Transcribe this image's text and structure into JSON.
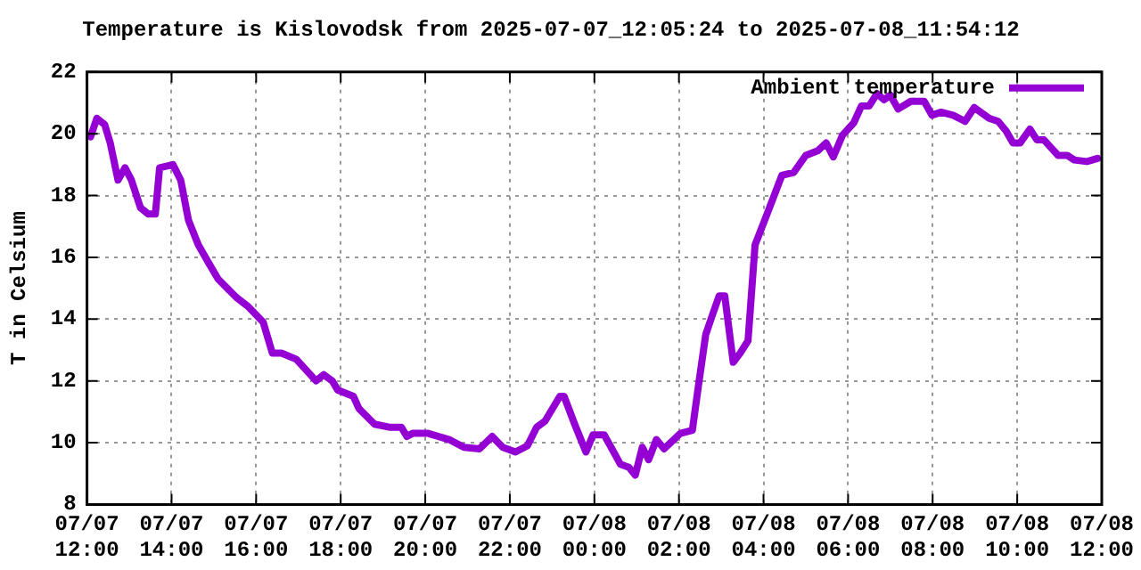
{
  "chart_data": {
    "type": "line",
    "title": "Temperature is Kislovodsk from 2025-07-07_12:05:24 to 2025-07-08_11:54:12",
    "ylabel": "T in Celsium",
    "legend": "top right",
    "grid": true,
    "marker": "none",
    "line_style": "solid",
    "xlim": [
      "2025-07-07T12:00",
      "2025-07-08T12:00"
    ],
    "xticks": [
      {
        "value": "2025-07-07T12:00",
        "label": "07/07 12:00"
      },
      {
        "value": "2025-07-07T14:00",
        "label": "07/07 14:00"
      },
      {
        "value": "2025-07-07T16:00",
        "label": "07/07 16:00"
      },
      {
        "value": "2025-07-07T18:00",
        "label": "07/07 18:00"
      },
      {
        "value": "2025-07-07T20:00",
        "label": "07/07 20:00"
      },
      {
        "value": "2025-07-07T22:00",
        "label": "07/07 22:00"
      },
      {
        "value": "2025-07-08T00:00",
        "label": "07/08 00:00"
      },
      {
        "value": "2025-07-08T02:00",
        "label": "07/08 02:00"
      },
      {
        "value": "2025-07-08T04:00",
        "label": "07/08 04:00"
      },
      {
        "value": "2025-07-08T06:00",
        "label": "07/08 06:00"
      },
      {
        "value": "2025-07-08T08:00",
        "label": "07/08 08:00"
      },
      {
        "value": "2025-07-08T10:00",
        "label": "07/08 10:00"
      },
      {
        "value": "2025-07-08T12:00",
        "label": "07/08 12:00"
      }
    ],
    "ylim": [
      8,
      22
    ],
    "yticks": [
      8,
      10,
      12,
      14,
      16,
      18,
      20,
      22
    ],
    "x": [
      "2025-07-07T12:05",
      "2025-07-07T12:14",
      "2025-07-07T12:25",
      "2025-07-07T12:33",
      "2025-07-07T12:44",
      "2025-07-07T12:54",
      "2025-07-07T13:03",
      "2025-07-07T13:16",
      "2025-07-07T13:27",
      "2025-07-07T13:37",
      "2025-07-07T13:43",
      "2025-07-07T14:02",
      "2025-07-07T14:13",
      "2025-07-07T14:24",
      "2025-07-07T14:38",
      "2025-07-07T14:53",
      "2025-07-07T15:06",
      "2025-07-07T15:32",
      "2025-07-07T15:49",
      "2025-07-07T16:10",
      "2025-07-07T16:23",
      "2025-07-07T16:36",
      "2025-07-07T16:57",
      "2025-07-07T17:25",
      "2025-07-07T17:36",
      "2025-07-07T17:48",
      "2025-07-07T17:56",
      "2025-07-07T18:18",
      "2025-07-07T18:26",
      "2025-07-07T18:48",
      "2025-07-07T19:09",
      "2025-07-07T19:26",
      "2025-07-07T19:34",
      "2025-07-07T19:42",
      "2025-07-07T19:58",
      "2025-07-07T20:04",
      "2025-07-07T20:34",
      "2025-07-07T20:55",
      "2025-07-07T21:17",
      "2025-07-07T21:35",
      "2025-07-07T21:50",
      "2025-07-07T22:08",
      "2025-07-07T22:25",
      "2025-07-07T22:38",
      "2025-07-07T22:50",
      "2025-07-07T23:11",
      "2025-07-07T23:17",
      "2025-07-07T23:32",
      "2025-07-07T23:48",
      "2025-07-07T23:58",
      "2025-07-08T00:14",
      "2025-07-08T00:37",
      "2025-07-08T00:49",
      "2025-07-08T00:58",
      "2025-07-08T01:08",
      "2025-07-08T01:17",
      "2025-07-08T01:28",
      "2025-07-08T01:39",
      "2025-07-08T02:02",
      "2025-07-08T02:19",
      "2025-07-08T02:28",
      "2025-07-08T02:38",
      "2025-07-08T02:47",
      "2025-07-08T02:57",
      "2025-07-08T03:05",
      "2025-07-08T03:17",
      "2025-07-08T03:27",
      "2025-07-08T03:38",
      "2025-07-08T03:48",
      "2025-07-08T04:05",
      "2025-07-08T04:26",
      "2025-07-08T04:43",
      "2025-07-08T05:00",
      "2025-07-08T05:17",
      "2025-07-08T05:29",
      "2025-07-08T05:39",
      "2025-07-08T05:52",
      "2025-07-08T06:08",
      "2025-07-08T06:19",
      "2025-07-08T06:30",
      "2025-07-08T06:41",
      "2025-07-08T06:51",
      "2025-07-08T07:00",
      "2025-07-08T07:11",
      "2025-07-08T07:29",
      "2025-07-08T07:48",
      "2025-07-08T07:59",
      "2025-07-08T08:12",
      "2025-07-08T08:29",
      "2025-07-08T08:46",
      "2025-07-08T08:59",
      "2025-07-08T09:20",
      "2025-07-08T09:33",
      "2025-07-08T09:44",
      "2025-07-08T09:54",
      "2025-07-08T10:04",
      "2025-07-08T10:18",
      "2025-07-08T10:28",
      "2025-07-08T10:38",
      "2025-07-08T10:58",
      "2025-07-08T11:11",
      "2025-07-08T11:21",
      "2025-07-08T11:39",
      "2025-07-08T11:54"
    ],
    "series": [
      {
        "name": "Ambient temperature",
        "color": "#9400d3",
        "values": [
          19.9,
          20.5,
          20.3,
          19.7,
          18.5,
          18.9,
          18.5,
          17.6,
          17.4,
          17.4,
          18.9,
          19.0,
          18.5,
          17.2,
          16.4,
          15.8,
          15.3,
          14.7,
          14.4,
          13.9,
          12.9,
          12.9,
          12.7,
          12.0,
          12.2,
          12.0,
          11.7,
          11.5,
          11.1,
          10.6,
          10.5,
          10.5,
          10.2,
          10.3,
          10.3,
          10.3,
          10.1,
          9.85,
          9.8,
          10.2,
          9.85,
          9.7,
          9.9,
          10.5,
          10.7,
          11.5,
          11.5,
          10.6,
          9.7,
          10.25,
          10.25,
          9.3,
          9.2,
          8.95,
          9.85,
          9.45,
          10.1,
          9.8,
          10.3,
          10.4,
          11.9,
          13.5,
          14.1,
          14.75,
          14.75,
          12.6,
          12.9,
          13.3,
          16.4,
          17.4,
          18.65,
          18.75,
          19.3,
          19.45,
          19.7,
          19.25,
          19.95,
          20.35,
          20.9,
          20.9,
          21.3,
          21.1,
          21.25,
          20.8,
          21.05,
          21.05,
          20.6,
          20.7,
          20.6,
          20.4,
          20.85,
          20.5,
          20.4,
          20.1,
          19.7,
          19.7,
          20.15,
          19.8,
          19.8,
          19.3,
          19.3,
          19.15,
          19.1,
          19.2
        ]
      }
    ]
  }
}
